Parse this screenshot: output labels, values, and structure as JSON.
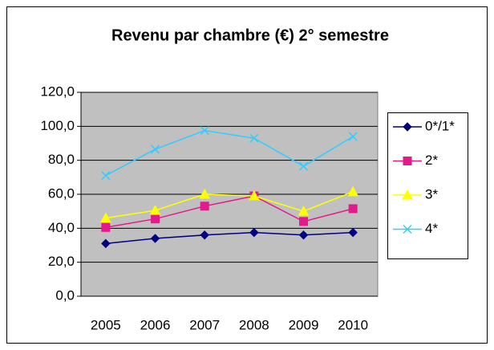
{
  "chart_data": {
    "type": "line",
    "title": "Revenu par chambre (€) 2° semestre",
    "categories": [
      "2005",
      "2006",
      "2007",
      "2008",
      "2009",
      "2010"
    ],
    "series": [
      {
        "name": "0*/1*",
        "color": "#000080",
        "marker": "diamond",
        "values": [
          31,
          34,
          36,
          37.5,
          36,
          37.5
        ]
      },
      {
        "name": "2*",
        "color": "#e4198b",
        "marker": "square",
        "values": [
          40.5,
          45.5,
          53,
          59,
          44,
          51.5
        ]
      },
      {
        "name": "3*",
        "color": "#ffff00",
        "marker": "triangle",
        "values": [
          46,
          50.5,
          60,
          59,
          50,
          61.5
        ]
      },
      {
        "name": "4*",
        "color": "#33ccff",
        "marker": "x",
        "values": [
          71,
          86.5,
          97.5,
          93,
          76.5,
          94
        ]
      }
    ],
    "ylim": [
      0,
      120
    ],
    "yticks": [
      {
        "value": 0,
        "label": "0,0"
      },
      {
        "value": 20,
        "label": "20,0"
      },
      {
        "value": 40,
        "label": "40,0"
      },
      {
        "value": 60,
        "label": "60,0"
      },
      {
        "value": 80,
        "label": "80,0"
      },
      {
        "value": 100,
        "label": "100,0"
      },
      {
        "value": 120,
        "label": "120,0"
      }
    ],
    "grid": true,
    "legend": "right"
  }
}
